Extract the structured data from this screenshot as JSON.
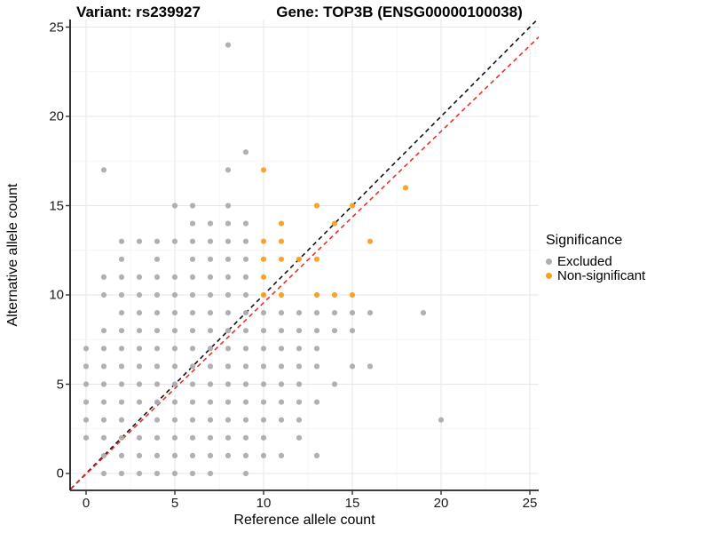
{
  "titles": {
    "left": "Variant: rs239927",
    "right": "Gene: TOP3B (ENSG00000100038)"
  },
  "legend": {
    "title": "Significance",
    "items": [
      {
        "label": "Excluded",
        "color": "#ADADAD"
      },
      {
        "label": "Non-significant",
        "color": "#F9A020"
      }
    ]
  },
  "chart_data": {
    "type": "scatter",
    "title": "Variant: rs239927   /   Gene: TOP3B (ENSG00000100038)",
    "xlabel": "Reference allele count",
    "ylabel": "Alternative allele count",
    "xlim": [
      -1,
      25.5
    ],
    "ylim": [
      -1,
      25.4
    ],
    "xticks": [
      0,
      5,
      10,
      15,
      20,
      25
    ],
    "yticks": [
      0,
      5,
      10,
      15,
      20,
      25
    ],
    "grid": "major+minor every 2.5",
    "legend_position": "right",
    "series": [
      {
        "name": "Excluded",
        "color": "#ADADAD",
        "points": [
          [
            1,
            0
          ],
          [
            2,
            0
          ],
          [
            3,
            0
          ],
          [
            4,
            0
          ],
          [
            5,
            0
          ],
          [
            6,
            0
          ],
          [
            7,
            0
          ],
          [
            9,
            0
          ],
          [
            1,
            1
          ],
          [
            2,
            1
          ],
          [
            3,
            1
          ],
          [
            4,
            1
          ],
          [
            5,
            1
          ],
          [
            6,
            1
          ],
          [
            7,
            1
          ],
          [
            8,
            1
          ],
          [
            9,
            1
          ],
          [
            10,
            1
          ],
          [
            11,
            1
          ],
          [
            13,
            1
          ],
          [
            0,
            2
          ],
          [
            1,
            2
          ],
          [
            2,
            2
          ],
          [
            3,
            2
          ],
          [
            4,
            2
          ],
          [
            5,
            2
          ],
          [
            6,
            2
          ],
          [
            7,
            2
          ],
          [
            8,
            2
          ],
          [
            9,
            2
          ],
          [
            10,
            2
          ],
          [
            12,
            2
          ],
          [
            0,
            3
          ],
          [
            1,
            3
          ],
          [
            2,
            3
          ],
          [
            4,
            3
          ],
          [
            5,
            3
          ],
          [
            6,
            3
          ],
          [
            7,
            3
          ],
          [
            8,
            3
          ],
          [
            9,
            3
          ],
          [
            10,
            3
          ],
          [
            11,
            3
          ],
          [
            12,
            3
          ],
          [
            20,
            3
          ],
          [
            0,
            4
          ],
          [
            1,
            4
          ],
          [
            2,
            4
          ],
          [
            3,
            4
          ],
          [
            4,
            4
          ],
          [
            5,
            4
          ],
          [
            6,
            4
          ],
          [
            7,
            4
          ],
          [
            8,
            4
          ],
          [
            9,
            4
          ],
          [
            10,
            4
          ],
          [
            11,
            4
          ],
          [
            12,
            4
          ],
          [
            13,
            4
          ],
          [
            0,
            5
          ],
          [
            1,
            5
          ],
          [
            2,
            5
          ],
          [
            3,
            5
          ],
          [
            4,
            5
          ],
          [
            5,
            5
          ],
          [
            6,
            5
          ],
          [
            7,
            5
          ],
          [
            8,
            5
          ],
          [
            9,
            5
          ],
          [
            10,
            5
          ],
          [
            11,
            5
          ],
          [
            12,
            5
          ],
          [
            14,
            5
          ],
          [
            0,
            6
          ],
          [
            1,
            6
          ],
          [
            2,
            6
          ],
          [
            3,
            6
          ],
          [
            4,
            6
          ],
          [
            5,
            6
          ],
          [
            6,
            6
          ],
          [
            7,
            6
          ],
          [
            8,
            6
          ],
          [
            9,
            6
          ],
          [
            10,
            6
          ],
          [
            11,
            6
          ],
          [
            12,
            6
          ],
          [
            13,
            6
          ],
          [
            15,
            6
          ],
          [
            16,
            6
          ],
          [
            0,
            7
          ],
          [
            1,
            7
          ],
          [
            2,
            7
          ],
          [
            3,
            7
          ],
          [
            4,
            7
          ],
          [
            5,
            7
          ],
          [
            6,
            7
          ],
          [
            7,
            7
          ],
          [
            8,
            7
          ],
          [
            9,
            7
          ],
          [
            10,
            7
          ],
          [
            11,
            7
          ],
          [
            12,
            7
          ],
          [
            13,
            7
          ],
          [
            1,
            8
          ],
          [
            2,
            8
          ],
          [
            3,
            8
          ],
          [
            4,
            8
          ],
          [
            5,
            8
          ],
          [
            6,
            8
          ],
          [
            7,
            8
          ],
          [
            8,
            8
          ],
          [
            9,
            8
          ],
          [
            10,
            8
          ],
          [
            11,
            8
          ],
          [
            12,
            8
          ],
          [
            13,
            8
          ],
          [
            14,
            8
          ],
          [
            15,
            8
          ],
          [
            2,
            9
          ],
          [
            3,
            9
          ],
          [
            4,
            9
          ],
          [
            5,
            9
          ],
          [
            6,
            9
          ],
          [
            7,
            9
          ],
          [
            8,
            9
          ],
          [
            9,
            9
          ],
          [
            10,
            9
          ],
          [
            11,
            9
          ],
          [
            12,
            9
          ],
          [
            13,
            9
          ],
          [
            14,
            9
          ],
          [
            15,
            9
          ],
          [
            16,
            9
          ],
          [
            19,
            9
          ],
          [
            1,
            10
          ],
          [
            2,
            10
          ],
          [
            3,
            10
          ],
          [
            4,
            10
          ],
          [
            5,
            10
          ],
          [
            6,
            10
          ],
          [
            7,
            10
          ],
          [
            8,
            10
          ],
          [
            9,
            10
          ],
          [
            1,
            11
          ],
          [
            2,
            11
          ],
          [
            3,
            11
          ],
          [
            4,
            11
          ],
          [
            5,
            11
          ],
          [
            6,
            11
          ],
          [
            7,
            11
          ],
          [
            8,
            11
          ],
          [
            9,
            11
          ],
          [
            2,
            12
          ],
          [
            4,
            12
          ],
          [
            6,
            12
          ],
          [
            7,
            12
          ],
          [
            8,
            12
          ],
          [
            9,
            12
          ],
          [
            2,
            13
          ],
          [
            3,
            13
          ],
          [
            4,
            13
          ],
          [
            5,
            13
          ],
          [
            6,
            13
          ],
          [
            7,
            13
          ],
          [
            8,
            13
          ],
          [
            9,
            13
          ],
          [
            6,
            14
          ],
          [
            7,
            14
          ],
          [
            8,
            14
          ],
          [
            9,
            14
          ],
          [
            5,
            15
          ],
          [
            6,
            15
          ],
          [
            8,
            15
          ],
          [
            1,
            17
          ],
          [
            8,
            17
          ],
          [
            9,
            18
          ],
          [
            8,
            24
          ]
        ]
      },
      {
        "name": "Non-significant",
        "color": "#F9A020",
        "points": [
          [
            10,
            10
          ],
          [
            11,
            10
          ],
          [
            13,
            10
          ],
          [
            14,
            10
          ],
          [
            15,
            10
          ],
          [
            10,
            11
          ],
          [
            10,
            12
          ],
          [
            11,
            12
          ],
          [
            12,
            12
          ],
          [
            13,
            12
          ],
          [
            10,
            13
          ],
          [
            11,
            13
          ],
          [
            16,
            13
          ],
          [
            11,
            14
          ],
          [
            14,
            14
          ],
          [
            13,
            15
          ],
          [
            15,
            15
          ],
          [
            18,
            16
          ],
          [
            10,
            17
          ]
        ]
      }
    ],
    "lines": [
      {
        "name": "identity",
        "slope": 1,
        "intercept": 0,
        "style": "dashed",
        "color": "#111111"
      },
      {
        "name": "fit",
        "slope": 0.96,
        "intercept": -0.04,
        "style": "dashed",
        "color": "#EE2C2C"
      }
    ]
  }
}
